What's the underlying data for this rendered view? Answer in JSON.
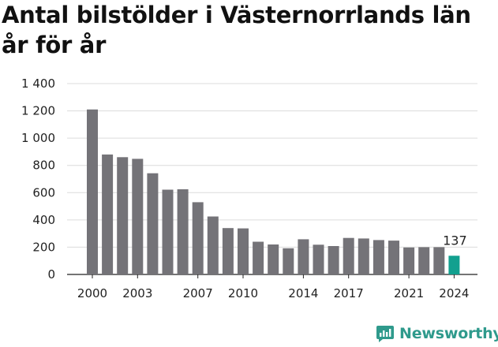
{
  "brand": {
    "name": "Newsworthy",
    "accent": "#2f9a8c"
  },
  "chart_data": {
    "type": "bar",
    "title": "Antal bilstölder i Västernorrlands län år för år",
    "xlabel": "",
    "ylabel": "",
    "categories": [
      "2000",
      "2001",
      "2002",
      "2003",
      "2004",
      "2005",
      "2006",
      "2007",
      "2008",
      "2009",
      "2010",
      "2011",
      "2012",
      "2013",
      "2014",
      "2015",
      "2016",
      "2017",
      "2018",
      "2019",
      "2020",
      "2021",
      "2022",
      "2023",
      "2024"
    ],
    "values": [
      1210,
      880,
      860,
      848,
      742,
      622,
      625,
      530,
      425,
      340,
      338,
      240,
      220,
      192,
      258,
      218,
      208,
      268,
      264,
      252,
      248,
      198,
      200,
      200,
      137
    ],
    "highlight_index": 24,
    "highlight_label": "137",
    "ylim": [
      0,
      1400
    ],
    "yticks": [
      0,
      200,
      400,
      600,
      800,
      1000,
      1200,
      1400
    ],
    "ytick_labels": [
      "0",
      "200",
      "400",
      "600",
      "800",
      "1 000",
      "1 200",
      "1 400"
    ],
    "xtick_labels": [
      "2000",
      "2003",
      "2007",
      "2010",
      "2014",
      "2017",
      "2021",
      "2024"
    ],
    "grid": true,
    "colors": {
      "bar": "#747378",
      "highlight": "#12a08f",
      "grid": "#dcdcdc",
      "axis": "#222222"
    }
  }
}
